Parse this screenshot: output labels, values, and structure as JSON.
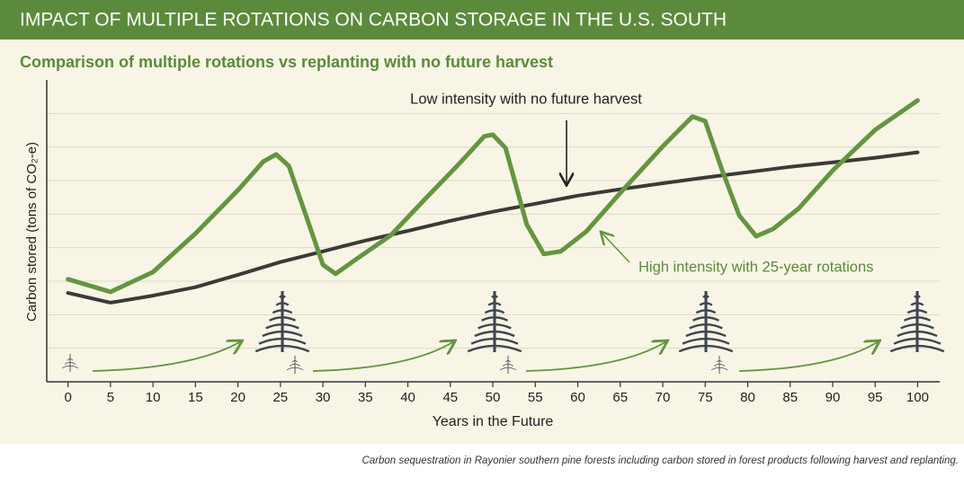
{
  "header": "IMPACT OF MULTIPLE ROTATIONS ON CARBON STORAGE IN THE U.S. SOUTH",
  "caption": "Carbon sequestration in Rayonier southern pine forests including carbon stored in forest products following harvest and replanting.",
  "chart_data": {
    "type": "line",
    "title": "Comparison of multiple rotations vs replanting with no future harvest",
    "x_label": "Years in the Future",
    "y_label": "Carbon stored (tons of CO₂-e)",
    "xlim": [
      -2.5,
      102.6
    ],
    "xticks": [
      0,
      5,
      10,
      15,
      20,
      25,
      30,
      35,
      40,
      45,
      50,
      55,
      60,
      65,
      70,
      75,
      80,
      85,
      90,
      95,
      100
    ],
    "ylim": [
      0,
      9
    ],
    "yticks": [
      1,
      2,
      3,
      4,
      5,
      6,
      7,
      8
    ],
    "ytick_labels": false,
    "grid": true,
    "series": [
      {
        "name": "Low intensity with no future harvest",
        "color": "#3a3a36",
        "x": [
          0,
          5,
          10,
          15,
          20,
          25,
          30,
          35,
          40,
          45,
          50,
          55,
          60,
          65,
          70,
          75,
          80,
          85,
          90,
          95,
          100
        ],
        "values": [
          2.65,
          2.36,
          2.57,
          2.82,
          3.19,
          3.57,
          3.89,
          4.21,
          4.5,
          4.8,
          5.07,
          5.31,
          5.55,
          5.74,
          5.92,
          6.09,
          6.25,
          6.41,
          6.54,
          6.68,
          6.84
        ]
      },
      {
        "name": "High intensity with 25-year rotations",
        "color": "#64953f",
        "x": [
          0,
          5,
          10,
          15,
          20,
          23,
          24.5,
          26,
          28,
          30,
          31.5,
          34,
          38,
          42,
          46,
          49,
          50,
          51.5,
          54,
          56,
          58,
          61,
          65,
          70,
          73.5,
          75,
          77,
          79,
          81,
          83,
          86,
          90,
          95,
          100
        ],
        "values": [
          3.06,
          2.68,
          3.27,
          4.42,
          5.71,
          6.57,
          6.78,
          6.43,
          4.96,
          3.49,
          3.22,
          3.67,
          4.37,
          5.44,
          6.49,
          7.32,
          7.37,
          6.97,
          4.69,
          3.81,
          3.89,
          4.48,
          5.63,
          7.02,
          7.91,
          7.77,
          6.3,
          4.96,
          4.34,
          4.56,
          5.17,
          6.3,
          7.51,
          8.39
        ]
      }
    ]
  }
}
